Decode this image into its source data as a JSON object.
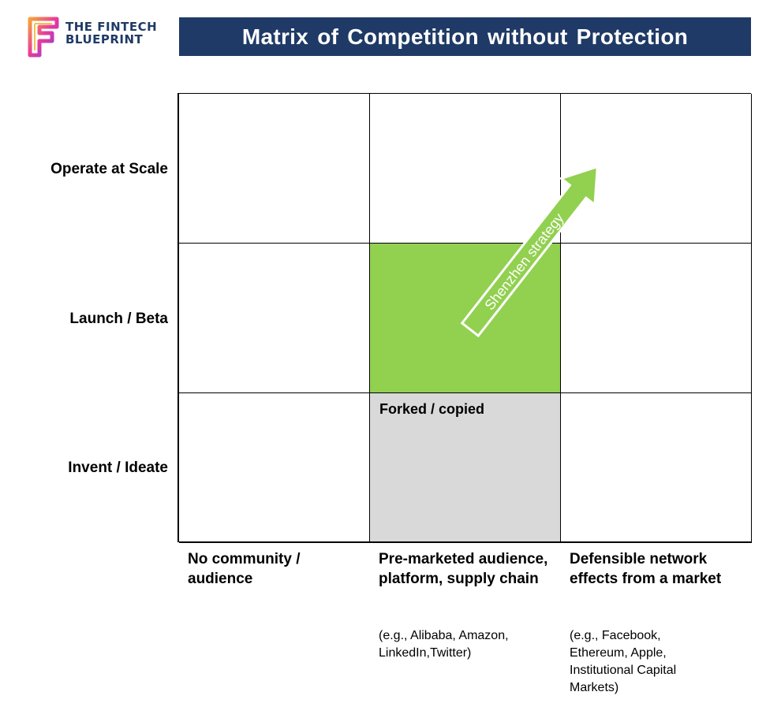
{
  "logo": {
    "line1": "THE FINTECH",
    "line2": "BLUEPRINT",
    "icon": "fintech-blueprint-logo-icon"
  },
  "title": "Matrix of Competition  without Protection",
  "rows": [
    "Operate at Scale",
    "Launch / Beta",
    "Invent / Ideate"
  ],
  "columns": [
    {
      "label": "No community / audience",
      "example": ""
    },
    {
      "label": "Pre-marketed audience, platform, supply chain",
      "example": "(e.g., Alibaba,  Amazon, LinkedIn,Twitter)"
    },
    {
      "label": "Defensible network effects from a market",
      "example": "(e.g., Facebook, Ethereum,  Apple, Institutional Capital Markets)"
    }
  ],
  "cells": {
    "forked_label": "Forked / copied"
  },
  "arrow": {
    "label": "Shenzhen strategy"
  },
  "colors": {
    "navy": "#1f3a66",
    "green": "#92d050",
    "gray": "#d9d9d9"
  }
}
